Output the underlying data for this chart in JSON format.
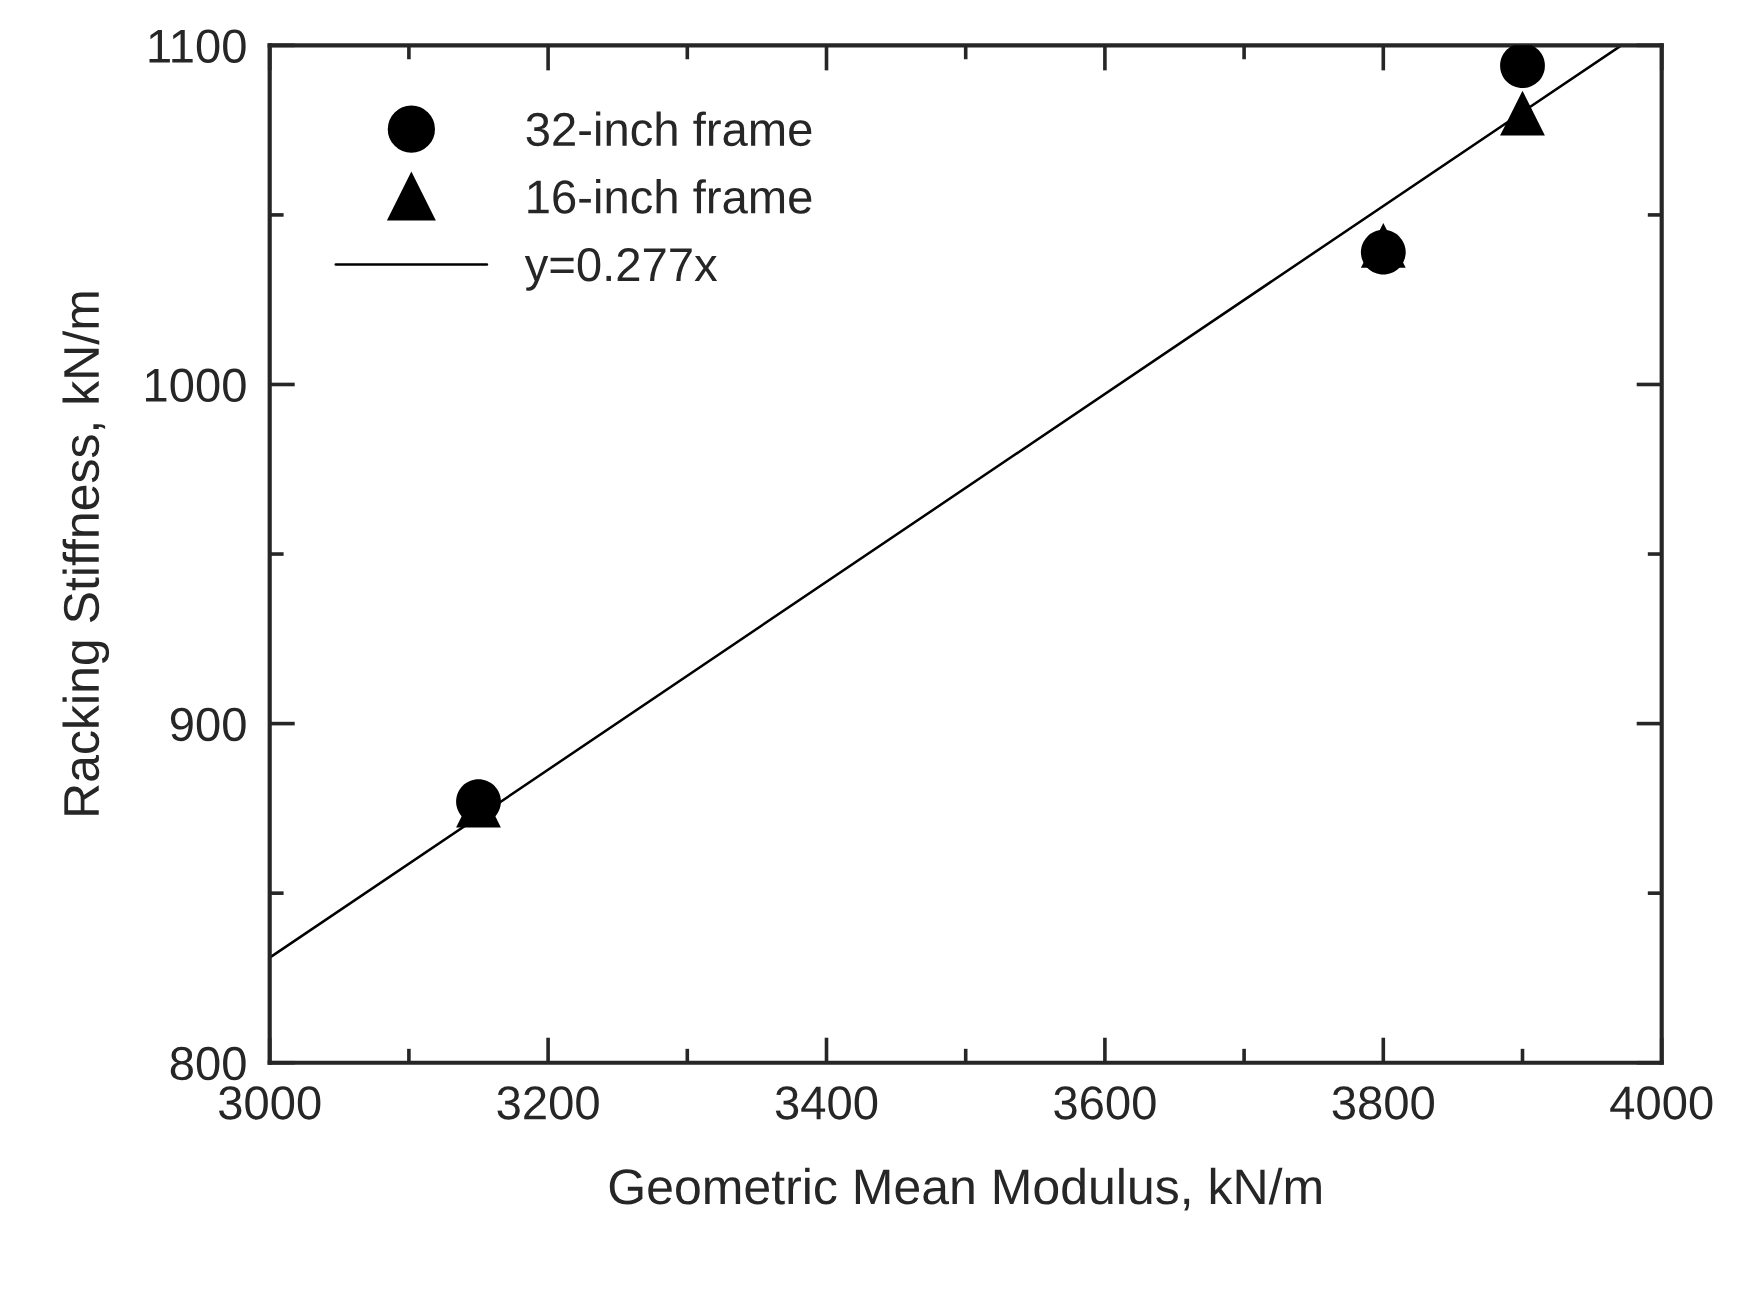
{
  "chart_data": {
    "type": "scatter",
    "xlabel": "Geometric Mean Modulus, kN/m",
    "ylabel": "Racking Stiffness, kN/m",
    "series": [
      {
        "name": "32-inch frame",
        "marker": "circle",
        "color": "#000000",
        "x": [
          3150,
          3800,
          3900
        ],
        "values": [
          877,
          1039,
          1094
        ]
      },
      {
        "name": "16-inch frame",
        "marker": "triangle",
        "color": "#000000",
        "x": [
          3150,
          3800,
          3900
        ],
        "values": [
          876,
          1041,
          1080
        ]
      },
      {
        "name": "y=0.277x",
        "type": "line",
        "marker": "none",
        "line_style": "solid",
        "color": "#000000",
        "x": [
          3000,
          3971
        ],
        "values": [
          831,
          1100
        ]
      }
    ],
    "xlim": [
      3000,
      4000
    ],
    "xticks": [
      3000,
      3200,
      3400,
      3600,
      3800,
      4000
    ],
    "ylim": [
      800,
      1100
    ],
    "yticks": [
      800,
      900,
      1000,
      1100
    ],
    "grid": false,
    "legend": "top left"
  }
}
